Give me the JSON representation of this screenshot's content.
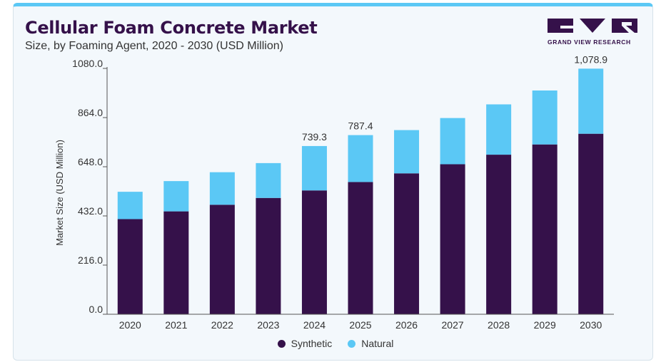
{
  "title": "Cellular Foam Concrete Market",
  "subtitle": "Size, by Foaming Agent, 2020 - 2030 (USD Million)",
  "logo": {
    "text": "GRAND VIEW RESEARCH",
    "color": "#35114a"
  },
  "colors": {
    "synthetic": "#35114a",
    "natural": "#5bc8f5"
  },
  "chart_data": {
    "type": "bar",
    "stacked": true,
    "categories": [
      "2020",
      "2021",
      "2022",
      "2023",
      "2024",
      "2025",
      "2026",
      "2027",
      "2028",
      "2029",
      "2030"
    ],
    "series": [
      {
        "name": "Synthetic",
        "values": [
          418,
          452,
          481,
          511,
          544,
          581,
          619,
          659,
          701,
          746,
          793
        ]
      },
      {
        "name": "Natural",
        "values": [
          120,
          133,
          143,
          153,
          195,
          206,
          190,
          203,
          221,
          237,
          286
        ]
      }
    ],
    "data_labels": {
      "2024": "739.3",
      "2025": "787.4",
      "2030": "1,078.9"
    },
    "ylabel": "Market Size (USD Million)",
    "xlabel": "",
    "ylim": [
      0,
      1080
    ],
    "yticks": [
      "0.0",
      "216.0",
      "432.0",
      "648.0",
      "864.0",
      "1080.0"
    ],
    "grid": false,
    "legend_position": "bottom-center"
  }
}
